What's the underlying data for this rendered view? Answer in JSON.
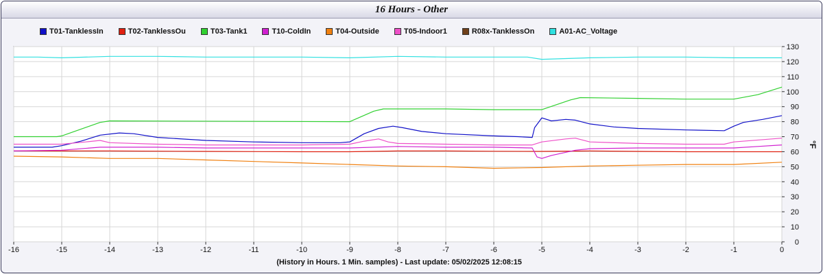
{
  "chart_data": {
    "type": "line",
    "title": "16 Hours - Other",
    "xlabel": "(History in Hours. 1 Min. samples) - Last update: 05/02/2025 12:08:15",
    "ylabel": "°F",
    "xlim": [
      -16,
      0
    ],
    "ylim": [
      0,
      130
    ],
    "x_ticks": [
      -16,
      -15,
      -14,
      -13,
      -12,
      -11,
      -10,
      -9,
      -8,
      -7,
      -6,
      -5,
      -4,
      -3,
      -2,
      -1,
      0
    ],
    "y_ticks": [
      0,
      10,
      20,
      30,
      40,
      50,
      60,
      70,
      80,
      90,
      100,
      110,
      120,
      130
    ],
    "grid": true,
    "legend_position": "top",
    "series": [
      {
        "name": "T01-TanklessIn",
        "color": "#1010c8",
        "x": [
          -16,
          -15.2,
          -15,
          -14.6,
          -14.2,
          -13.8,
          -13.5,
          -13,
          -12,
          -11,
          -10,
          -9.2,
          -9,
          -8.7,
          -8.4,
          -8.1,
          -7.9,
          -7.5,
          -7,
          -6,
          -5.5,
          -5.2,
          -5.15,
          -5,
          -4.8,
          -4.5,
          -4.3,
          -4,
          -3.5,
          -3,
          -2,
          -1.2,
          -1,
          -0.8,
          -0.4,
          0
        ],
        "y": [
          63,
          63,
          64,
          67,
          71,
          72.5,
          72,
          69.5,
          67.5,
          66.5,
          66,
          66,
          66.5,
          72,
          75.5,
          77,
          76,
          73.5,
          72,
          70.5,
          70,
          69.5,
          76,
          82.5,
          80.5,
          81.5,
          81,
          78.5,
          76.5,
          75.5,
          74.5,
          74,
          77,
          79.5,
          81.5,
          84
        ]
      },
      {
        "name": "T02-TanklessOu",
        "color": "#e02010",
        "x": [
          -16,
          -14,
          -12,
          -10,
          -9,
          -8,
          -7,
          -6,
          -5,
          -4,
          -3,
          -2,
          -1,
          0
        ],
        "y": [
          60.5,
          60.5,
          60.2,
          60,
          60,
          60.5,
          60.5,
          60.3,
          60.2,
          60.5,
          60.2,
          60,
          60,
          60
        ]
      },
      {
        "name": "T03-Tank1",
        "color": "#30d030",
        "x": [
          -16,
          -15.1,
          -15,
          -14.2,
          -14,
          -9,
          -8.5,
          -8.3,
          -7,
          -6,
          -5,
          -4.4,
          -4.2,
          -3,
          -2,
          -1,
          -0.5,
          0
        ],
        "y": [
          70,
          70,
          70.5,
          79.5,
          80.5,
          80,
          87,
          88.5,
          88.5,
          88,
          88,
          94.5,
          96,
          95.5,
          95,
          95,
          98,
          103
        ]
      },
      {
        "name": "T10-ColdIn",
        "color": "#d020d0",
        "x": [
          -16,
          -15,
          -14.2,
          -14,
          -13,
          -12,
          -11,
          -10,
          -9,
          -8,
          -7,
          -6,
          -5.2,
          -5.1,
          -5,
          -4.8,
          -4.3,
          -4,
          -3,
          -2,
          -1,
          -0.5,
          0
        ],
        "y": [
          60.5,
          61,
          63,
          63,
          63,
          62.5,
          62.5,
          62.5,
          62.5,
          63.5,
          63,
          63,
          62.5,
          56.5,
          55.5,
          57.5,
          61,
          62,
          62.5,
          62.5,
          62.5,
          63.5,
          64.5
        ]
      },
      {
        "name": "T04-Outside",
        "color": "#f08010",
        "x": [
          -16,
          -15,
          -14,
          -13,
          -12,
          -11,
          -10,
          -9,
          -8,
          -7,
          -6,
          -5,
          -4,
          -3,
          -2,
          -1,
          0
        ],
        "y": [
          57,
          56.5,
          55.5,
          55.5,
          54.5,
          53.5,
          52.5,
          51.5,
          50.5,
          50,
          49,
          49.5,
          50.5,
          51,
          51.5,
          51.5,
          53
        ]
      },
      {
        "name": "T05-Indoor1",
        "color": "#ee50c8",
        "x": [
          -16,
          -15,
          -14.5,
          -14.2,
          -14,
          -13,
          -12,
          -11,
          -10,
          -9,
          -8.7,
          -8.4,
          -8.2,
          -8,
          -7,
          -6,
          -5.2,
          -5,
          -4.5,
          -4.3,
          -4,
          -3,
          -2,
          -1.2,
          -1,
          0
        ],
        "y": [
          65,
          65,
          66.5,
          67.5,
          66,
          65,
          64.5,
          64.5,
          64.5,
          65,
          67,
          68.5,
          66.5,
          65.5,
          65,
          64.5,
          64.5,
          66.5,
          68.5,
          69,
          66.5,
          65.5,
          65,
          65,
          66.5,
          69
        ]
      },
      {
        "name": "R08x-TanklessOn",
        "color": "#70401a",
        "x": [],
        "y": []
      },
      {
        "name": "A01-AC_Voltage",
        "color": "#30e0e0",
        "x": [
          -16,
          -15.5,
          -15,
          -14,
          -13,
          -12,
          -11,
          -10,
          -9,
          -8,
          -7,
          -6,
          -5.3,
          -5,
          -4.5,
          -4,
          -3,
          -2,
          -1,
          0
        ],
        "y": [
          123,
          123,
          122.5,
          123.5,
          123.5,
          123,
          123,
          123,
          122.5,
          123.5,
          123,
          123,
          123,
          121.5,
          122,
          122.5,
          123,
          123,
          122.5,
          122.5
        ]
      }
    ]
  }
}
